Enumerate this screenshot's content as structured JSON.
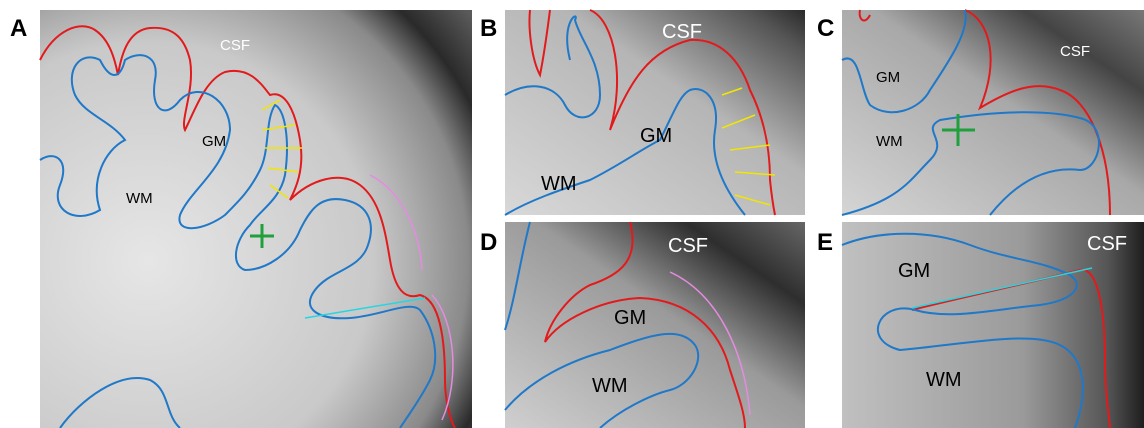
{
  "panels": [
    {
      "label": "A",
      "annotations": [
        "CSF",
        "GM",
        "WM"
      ]
    },
    {
      "label": "B",
      "annotations": [
        "CSF",
        "GM",
        "WM"
      ]
    },
    {
      "label": "C",
      "annotations": [
        "GM",
        "CSF",
        "WM"
      ]
    },
    {
      "label": "D",
      "annotations": [
        "CSF",
        "GM",
        "WM"
      ]
    },
    {
      "label": "E",
      "annotations": [
        "GM",
        "CSF",
        "WM"
      ]
    }
  ]
}
